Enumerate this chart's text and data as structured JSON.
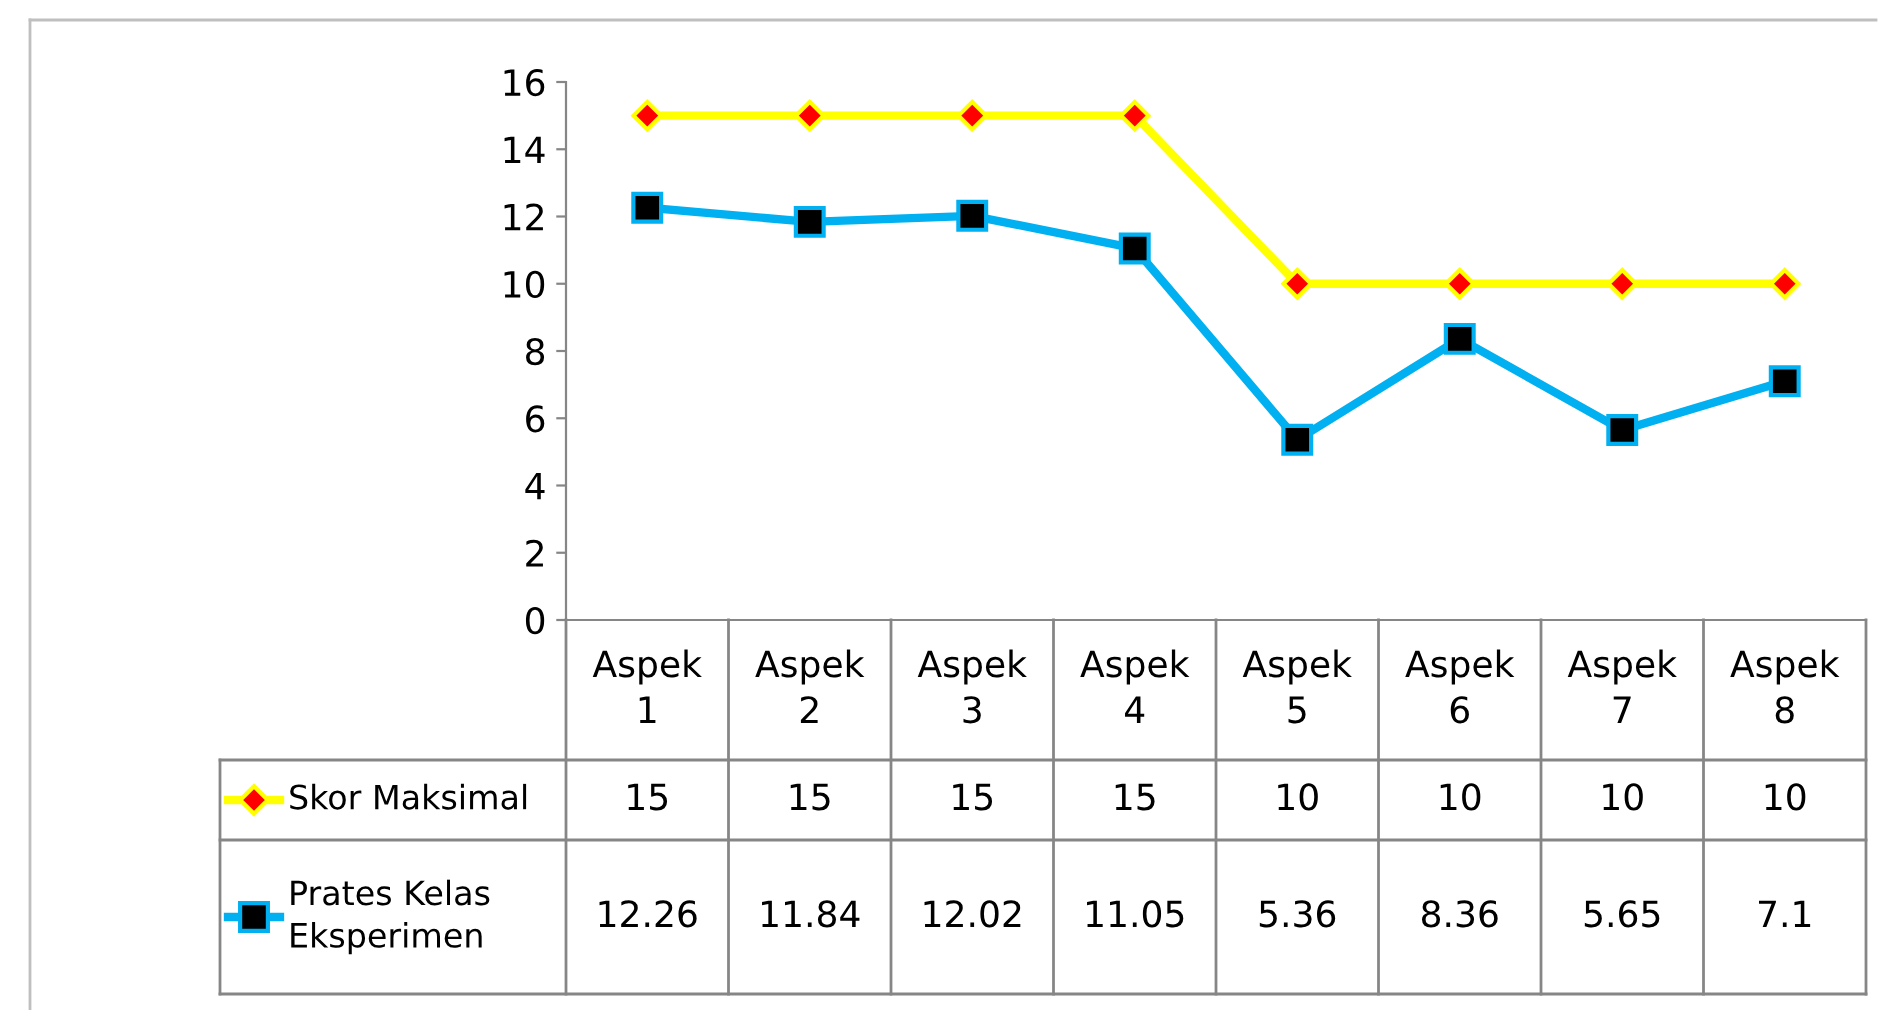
{
  "chart_data": {
    "type": "line",
    "categories": [
      "Aspek 1",
      "Aspek 2",
      "Aspek 3",
      "Aspek 4",
      "Aspek 5",
      "Aspek 6",
      "Aspek 7",
      "Aspek 8"
    ],
    "series": [
      {
        "name": "Skor Maksimal",
        "color": "#ffff00",
        "marker": "diamond",
        "values": [
          15,
          15,
          15,
          15,
          10,
          10,
          10,
          10
        ]
      },
      {
        "name": "Prates Kelas Eksperimen",
        "color": "#00b0f0",
        "marker": "square",
        "values": [
          12.26,
          11.84,
          12.02,
          11.05,
          5.36,
          8.36,
          5.65,
          7.1
        ]
      }
    ],
    "ylim": [
      0,
      16
    ],
    "yticks": [
      0,
      2,
      4,
      6,
      8,
      10,
      12,
      14,
      16
    ],
    "data_labels": true,
    "legend": "bottom"
  }
}
